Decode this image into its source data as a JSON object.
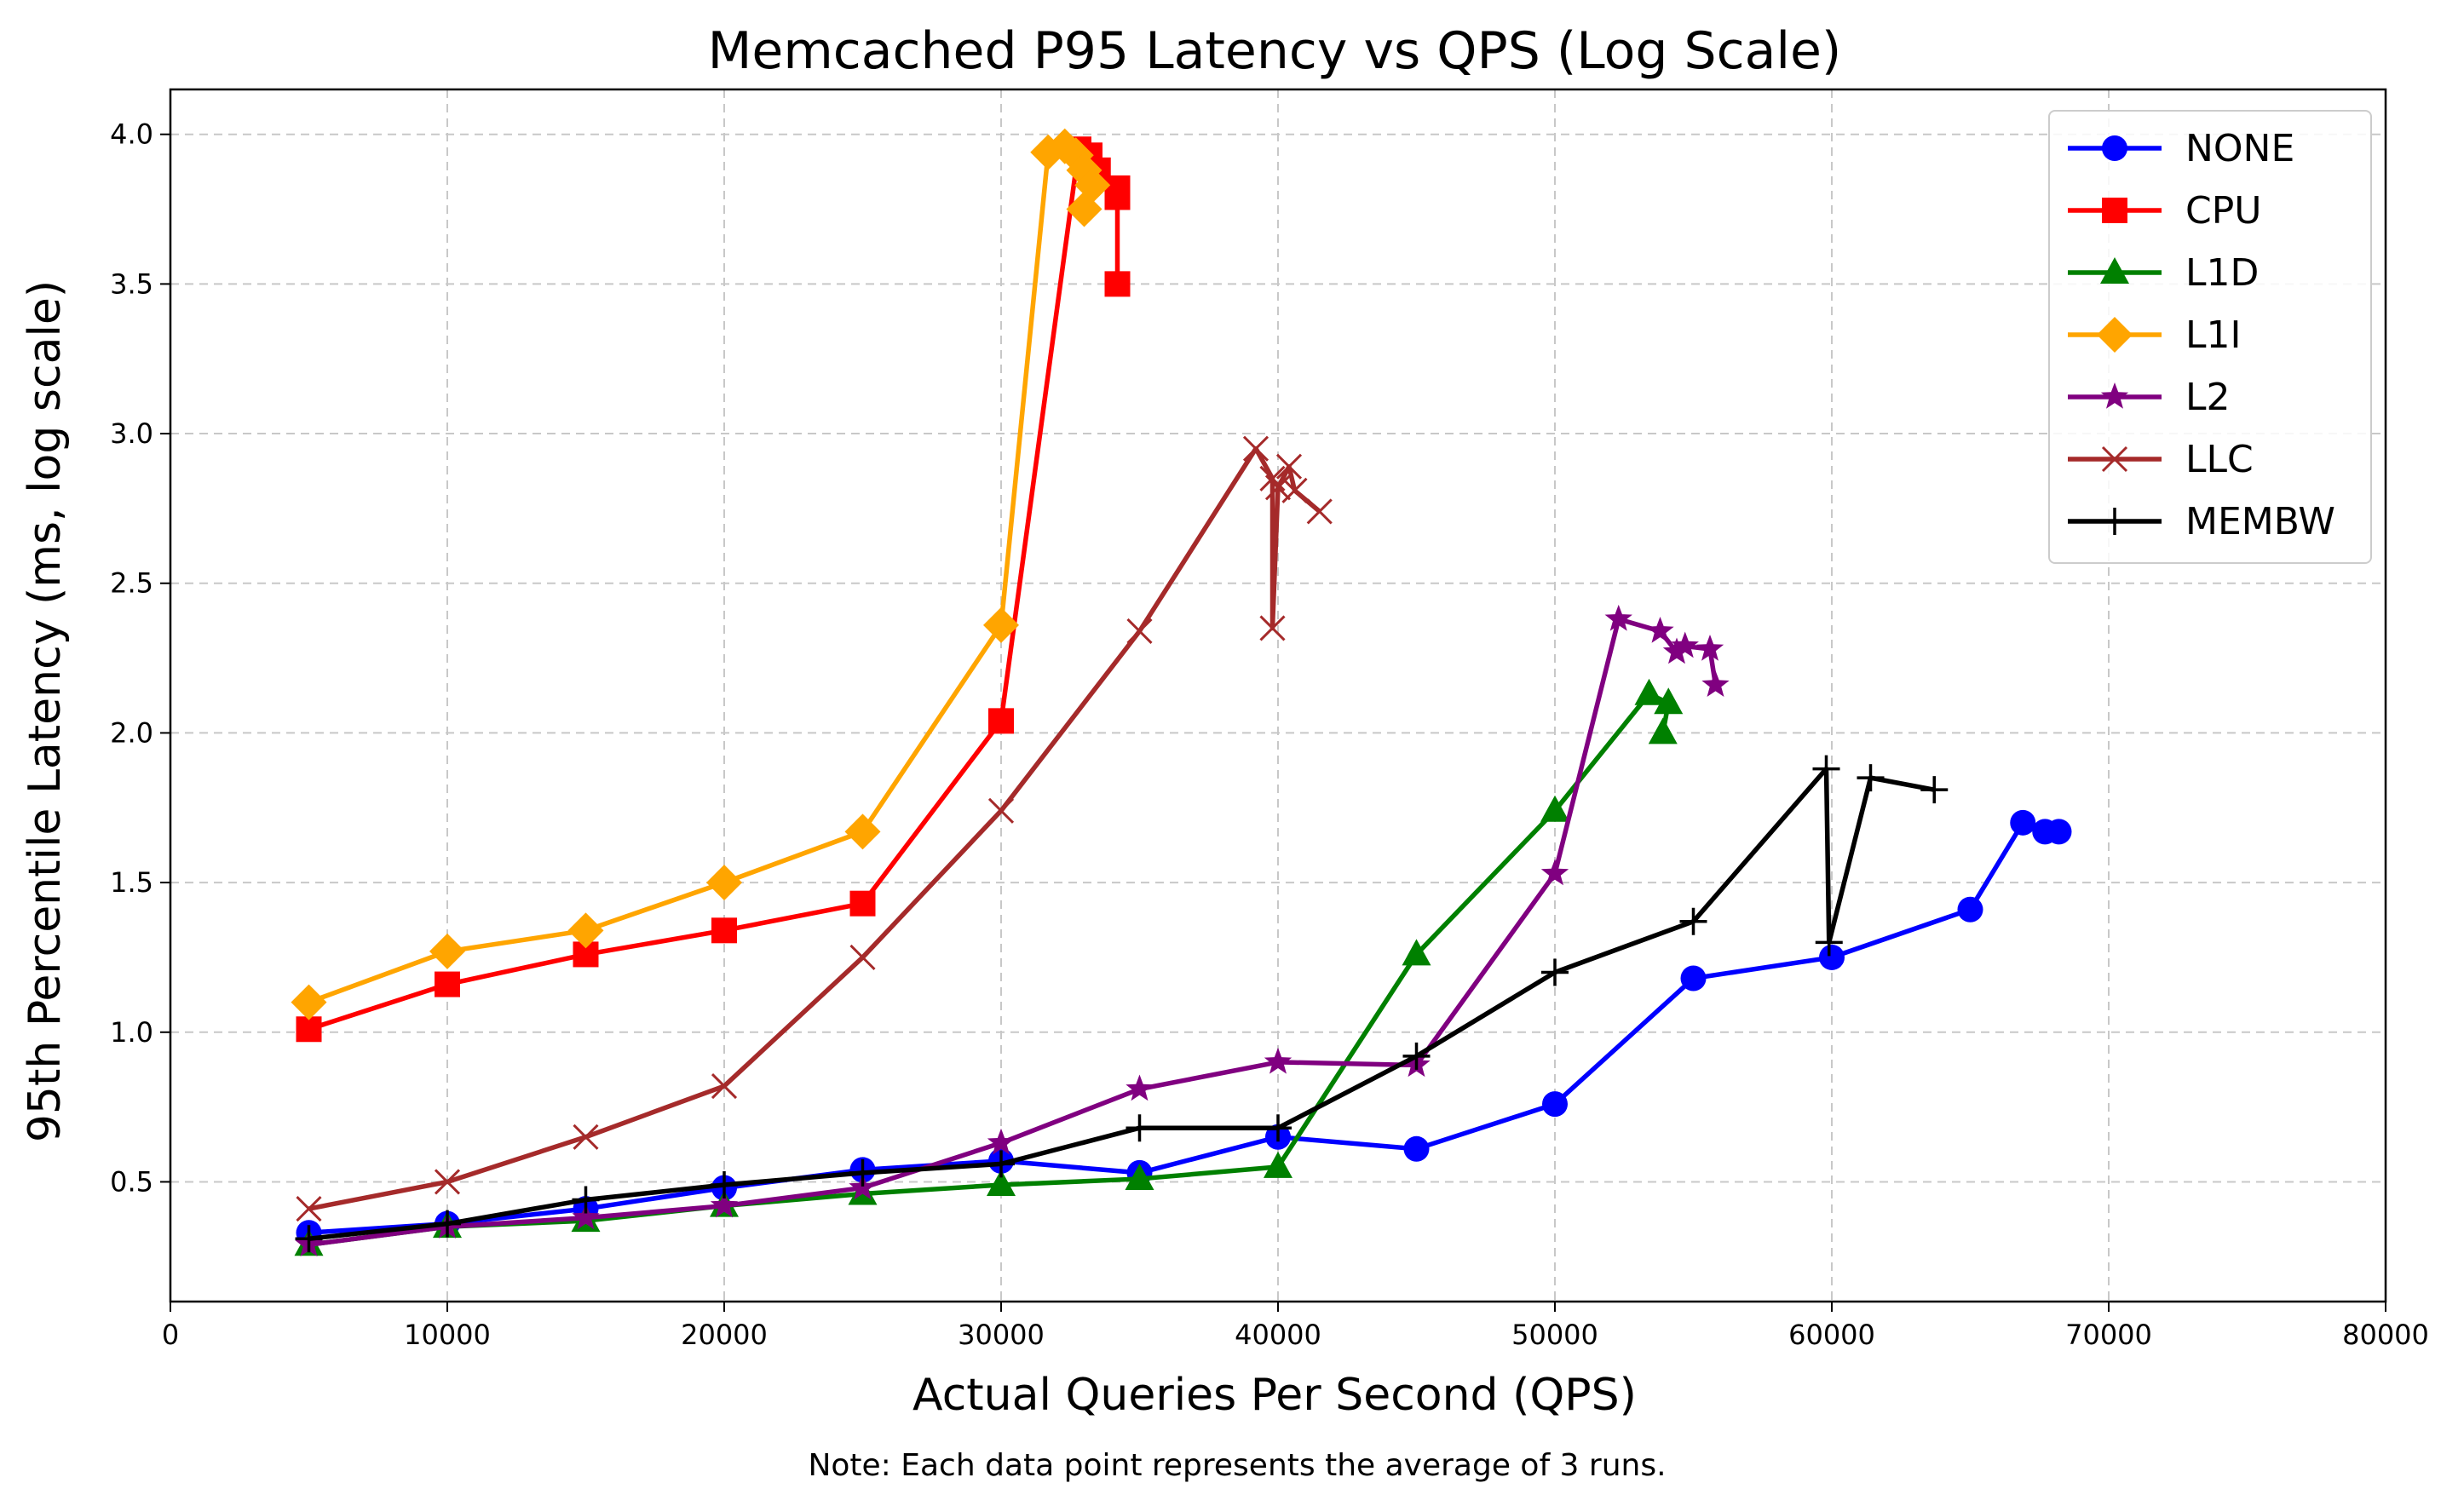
{
  "chart_data": {
    "type": "line",
    "title": "Memcached P95 Latency vs QPS (Log Scale)",
    "xlabel": "Actual Queries Per Second (QPS)",
    "ylabel": "95th Percentile Latency (ms, log scale)",
    "note": "Note: Each data point represents the average of 3 runs.",
    "xlim": [
      0,
      80000
    ],
    "ylim": [
      0.1,
      4.15
    ],
    "x_ticks": [
      0,
      10000,
      20000,
      30000,
      40000,
      50000,
      60000,
      70000,
      80000
    ],
    "y_ticks": [
      0.5,
      1.0,
      1.5,
      2.0,
      2.5,
      3.0,
      3.5,
      4.0
    ],
    "x_tick_labels": [
      "0",
      "10000",
      "20000",
      "30000",
      "40000",
      "50000",
      "60000",
      "70000",
      "80000"
    ],
    "y_tick_labels": [
      "0.5",
      "1.0",
      "1.5",
      "2.0",
      "2.5",
      "3.0",
      "3.5",
      "4.0"
    ],
    "grid": true,
    "legend_position": "top-right",
    "series": [
      {
        "name": "NONE",
        "color": "#0000ff",
        "marker": "circle",
        "points": [
          [
            5000,
            0.33
          ],
          [
            10000,
            0.36
          ],
          [
            15000,
            0.41
          ],
          [
            20000,
            0.48
          ],
          [
            25000,
            0.54
          ],
          [
            30000,
            0.57
          ],
          [
            35000,
            0.53
          ],
          [
            40000,
            0.65
          ],
          [
            45000,
            0.61
          ],
          [
            50000,
            0.76
          ],
          [
            55000,
            1.18
          ],
          [
            60000,
            1.25
          ],
          [
            65000,
            1.41
          ],
          [
            66900,
            1.7
          ],
          [
            67700,
            1.67
          ],
          [
            68200,
            1.67
          ]
        ]
      },
      {
        "name": "CPU",
        "color": "#ff0000",
        "marker": "square",
        "points": [
          [
            5000,
            1.01
          ],
          [
            10000,
            1.16
          ],
          [
            15000,
            1.26
          ],
          [
            20000,
            1.34
          ],
          [
            25000,
            1.43
          ],
          [
            30000,
            2.04
          ],
          [
            32800,
            3.95
          ],
          [
            33200,
            3.93
          ],
          [
            33500,
            3.88
          ],
          [
            34200,
            3.82
          ],
          [
            34200,
            3.79
          ],
          [
            34200,
            3.5
          ]
        ]
      },
      {
        "name": "L1D",
        "color": "#008000",
        "marker": "triangle",
        "points": [
          [
            5000,
            0.29
          ],
          [
            10000,
            0.35
          ],
          [
            15000,
            0.37
          ],
          [
            20000,
            0.42
          ],
          [
            25000,
            0.46
          ],
          [
            30000,
            0.49
          ],
          [
            35000,
            0.51
          ],
          [
            40000,
            0.55
          ],
          [
            45000,
            1.26
          ],
          [
            50000,
            1.74
          ],
          [
            53400,
            2.13
          ],
          [
            54100,
            2.1
          ],
          [
            53900,
            2.0
          ]
        ]
      },
      {
        "name": "L1I",
        "color": "#ffa500",
        "marker": "diamond",
        "points": [
          [
            5000,
            1.1
          ],
          [
            10000,
            1.27
          ],
          [
            15000,
            1.34
          ],
          [
            20000,
            1.5
          ],
          [
            25000,
            1.67
          ],
          [
            30000,
            2.36
          ],
          [
            31700,
            3.94
          ],
          [
            32300,
            3.96
          ],
          [
            32700,
            3.93
          ],
          [
            33000,
            3.88
          ],
          [
            33300,
            3.83
          ],
          [
            33000,
            3.75
          ]
        ]
      },
      {
        "name": "L2",
        "color": "#800080",
        "marker": "star",
        "points": [
          [
            5000,
            0.29
          ],
          [
            10000,
            0.35
          ],
          [
            15000,
            0.38
          ],
          [
            20000,
            0.42
          ],
          [
            25000,
            0.48
          ],
          [
            30000,
            0.63
          ],
          [
            35000,
            0.81
          ],
          [
            40000,
            0.9
          ],
          [
            45000,
            0.89
          ],
          [
            50000,
            1.53
          ],
          [
            52300,
            2.38
          ],
          [
            53800,
            2.34
          ],
          [
            54400,
            2.27
          ],
          [
            54700,
            2.29
          ],
          [
            55600,
            2.28
          ],
          [
            55800,
            2.16
          ]
        ]
      },
      {
        "name": "LLC",
        "color": "#a52a2a",
        "marker": "x",
        "points": [
          [
            5000,
            0.41
          ],
          [
            10000,
            0.5
          ],
          [
            15000,
            0.65
          ],
          [
            20000,
            0.82
          ],
          [
            25000,
            1.25
          ],
          [
            30000,
            1.74
          ],
          [
            35000,
            2.34
          ],
          [
            39200,
            2.95
          ],
          [
            39800,
            2.85
          ],
          [
            39800,
            2.35
          ],
          [
            40000,
            2.82
          ],
          [
            40400,
            2.89
          ],
          [
            40600,
            2.81
          ],
          [
            41500,
            2.74
          ]
        ]
      },
      {
        "name": "MEMBW",
        "color": "#000000",
        "marker": "plus",
        "points": [
          [
            5000,
            0.31
          ],
          [
            10000,
            0.36
          ],
          [
            15000,
            0.44
          ],
          [
            20000,
            0.49
          ],
          [
            25000,
            0.53
          ],
          [
            30000,
            0.56
          ],
          [
            35000,
            0.68
          ],
          [
            40000,
            0.68
          ],
          [
            45000,
            0.92
          ],
          [
            50000,
            1.2
          ],
          [
            55000,
            1.37
          ],
          [
            59800,
            1.88
          ],
          [
            59900,
            1.3
          ],
          [
            61400,
            1.85
          ],
          [
            63700,
            1.81
          ]
        ]
      }
    ]
  }
}
